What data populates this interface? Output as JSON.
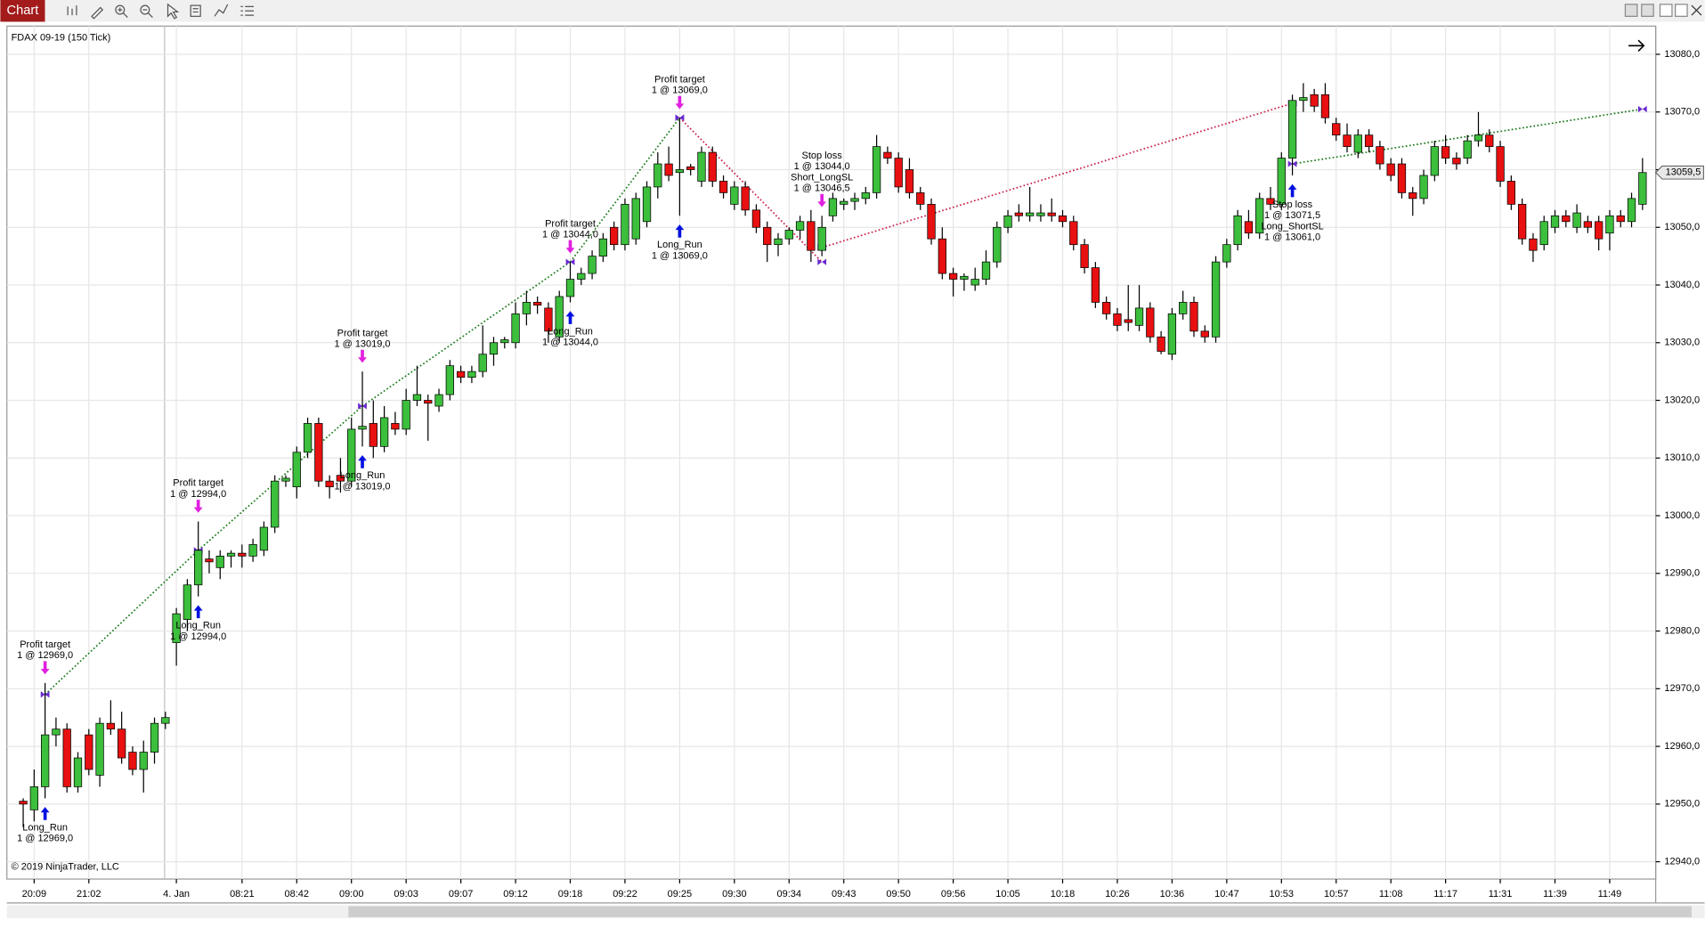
{
  "toolbar": {
    "tab": "Chart"
  },
  "chart_data": {
    "type": "candlestick",
    "title": "FDAX 09-19 (150 Tick)",
    "footer": "© 2019 NinjaTrader, LLC",
    "categories": [
      null,
      "20:09",
      null,
      null,
      null,
      null,
      "21:02",
      null,
      null,
      null,
      null,
      null,
      null,
      null,
      "4. Jan",
      null,
      null,
      null,
      null,
      null,
      "08:21",
      null,
      null,
      null,
      null,
      "08:42",
      null,
      null,
      null,
      null,
      "09:00",
      null,
      null,
      null,
      null,
      "09:03",
      null,
      null,
      null,
      null,
      "09:07",
      null,
      null,
      null,
      null,
      "09:12",
      null,
      null,
      null,
      null,
      "09:18",
      null,
      null,
      null,
      null,
      "09:22",
      null,
      null,
      null,
      null,
      "09:25",
      null,
      null,
      null,
      null,
      "09:30",
      null,
      null,
      null,
      null,
      "09:34",
      null,
      null,
      null,
      null,
      "09:43",
      null,
      null,
      null,
      null,
      "09:50",
      null,
      null,
      null,
      null,
      "09:56",
      null,
      null,
      null,
      null,
      "10:05",
      null,
      null,
      null,
      null,
      "10:18",
      null,
      null,
      null,
      null,
      "10:26",
      null,
      null,
      null,
      null,
      "10:36",
      null,
      null,
      null,
      null,
      "10:47",
      null,
      null,
      null,
      null,
      "10:53",
      null,
      null,
      null,
      null,
      "10:57",
      null,
      null,
      null,
      null,
      "11:08",
      null,
      null,
      null,
      null,
      "11:17",
      null,
      null,
      null,
      null,
      "11:31",
      null,
      null,
      null,
      null,
      "11:39",
      null,
      null,
      null,
      null,
      "11:49",
      null,
      null,
      null
    ],
    "open": [
      12950.5,
      12949,
      12953,
      12962,
      12963,
      12953,
      12962,
      12955,
      12964,
      12963,
      12959,
      12956,
      12959,
      12964,
      12978,
      12982,
      12988,
      12992.5,
      12991,
      12993,
      12993.5,
      12993,
      12994,
      12998,
      13006,
      13005,
      13011,
      13016,
      13006,
      13007,
      13006,
      13015,
      13016,
      13012,
      13016,
      13015,
      13020,
      13020,
      13019,
      13021,
      13025,
      13024,
      13025,
      13028,
      13030,
      13030,
      13035,
      13037,
      13036,
      13031,
      13038,
      13041,
      13042,
      13045,
      13050,
      13047,
      13048,
      13051,
      13057,
      13061,
      13059.5,
      13060.5,
      13058,
      13063,
      13058,
      13054,
      13057,
      13053,
      13050,
      13047,
      13048,
      13049.5,
      13051,
      13046,
      13052,
      13054,
      13054.5,
      13055,
      13056,
      13063,
      13062,
      13060,
      13056,
      13054,
      13048,
      13042,
      13041,
      13040,
      13041,
      13044,
      13050,
      13052.5,
      13052,
      13052,
      13052.5,
      13052,
      13051,
      13047,
      13043,
      13037,
      13035,
      13034,
      13033,
      13036,
      13031,
      13028,
      13035,
      13037,
      13032,
      13031,
      13044,
      13047,
      13051,
      13049,
      13055,
      13054,
      13062,
      13072,
      13073,
      13073,
      13068,
      13066,
      13063,
      13066,
      13064,
      13061,
      13061,
      13056,
      13055,
      13059,
      13064,
      13062,
      13062,
      13065,
      13066,
      13064,
      13058,
      13054,
      13048,
      13047,
      13050,
      13052,
      13050,
      13051,
      13051,
      13049,
      13052,
      13051,
      13054
    ],
    "high": [
      12951,
      12956,
      12971,
      12965,
      12964,
      12959,
      12963,
      12965,
      12968,
      12966,
      12960,
      12961,
      12965,
      12966,
      12984,
      12989,
      12999,
      12994,
      12994,
      12994,
      12995,
      12996,
      12999,
      13007,
      13007,
      13012,
      13017,
      13017,
      13007,
      13010,
      13017,
      13025,
      13020,
      13019,
      13018,
      13022,
      13026,
      13021,
      13022,
      13027,
      13026,
      13026,
      13033,
      13031,
      13031,
      13037,
      13039,
      13038,
      13037,
      13039,
      13044,
      13043,
      13046,
      13049,
      13051,
      13055,
      13056,
      13058,
      13063,
      13064,
      13069,
      13061,
      13064,
      13064,
      13059,
      13058,
      13058,
      13054,
      13051,
      13049,
      13050,
      13052,
      13053,
      13052,
      13056,
      13055,
      13056,
      13057,
      13066,
      13064,
      13063,
      13062,
      13057,
      13055,
      13050,
      13043,
      13042,
      13043,
      13046,
      13051,
      13053,
      13054,
      13057,
      13054,
      13055,
      13053,
      13052,
      13048,
      13044,
      13038,
      13036,
      13040,
      13040,
      13037,
      13032,
      13036,
      13039,
      13038,
      13033,
      13045,
      13048,
      13053,
      13053,
      13056,
      13057,
      13063,
      13073,
      13075,
      13074,
      13075,
      13069,
      13068,
      13067,
      13067,
      13065,
      13062,
      13062,
      13057,
      13060,
      13065,
      13066,
      13063,
      13066,
      13070,
      13067,
      13065,
      13059,
      13055,
      13049,
      13052,
      13053,
      13053,
      13054,
      13052,
      13052,
      13053,
      13053,
      13056,
      13062
    ],
    "low": [
      12946,
      12947,
      12951,
      12960,
      12952,
      12952,
      12955,
      12953,
      12962,
      12957,
      12955,
      12952,
      12957,
      12963,
      12974,
      12980,
      12986,
      12990,
      12989,
      12991,
      12991,
      12992,
      12993,
      12997,
      13005,
      13003,
      13010,
      13005,
      13003,
      13004,
      13005,
      13012,
      13010,
      13011,
      13014,
      13014,
      13019,
      13013,
      13018,
      13020,
      13023,
      13023,
      13024,
      13026,
      13029,
      13029,
      13033,
      13035,
      13030,
      13030,
      13037,
      13040,
      13041,
      13044,
      13046,
      13046,
      13047,
      13050,
      13055,
      13058,
      13052,
      13059,
      13057,
      13057,
      13055,
      13053,
      13052,
      13049,
      13044,
      13045,
      13047,
      13048,
      13044,
      13045,
      13051,
      13053,
      13053,
      13054,
      13055,
      13061,
      13056,
      13055,
      13053,
      13047,
      13041,
      13038,
      13039,
      13039,
      13040,
      13043,
      13049,
      13051,
      13051,
      13051,
      13051,
      13050,
      13046,
      13042,
      13036,
      13034,
      13032,
      13032,
      13032,
      13030,
      13028,
      13027,
      13034,
      13031,
      13030,
      13030,
      13043,
      13046,
      13048,
      13048,
      13053,
      13053,
      13059,
      13070,
      13070,
      13068,
      13065,
      13063,
      13062,
      13063,
      13060,
      13058,
      13055,
      13052,
      13054,
      13058,
      13061,
      13060,
      13061,
      13064,
      13063,
      13057,
      13053,
      13047,
      13044,
      13046,
      13049,
      13050,
      13049,
      13049,
      13046,
      13046,
      13050,
      13050,
      13053
    ],
    "close": [
      12950,
      12953,
      12962,
      12963,
      12953,
      12958,
      12956,
      12964,
      12963,
      12958,
      12956,
      12959,
      12964,
      12965,
      12983,
      12988,
      12994,
      12992,
      12993,
      12993.5,
      12993,
      12995,
      12998,
      13006,
      13006.5,
      13011,
      13016,
      13006,
      13005,
      13006,
      13015,
      13015.5,
      13012,
      13017,
      13015,
      13020,
      13021,
      13019.5,
      13021,
      13026,
      13024,
      13025,
      13028,
      13030,
      13030.5,
      13035,
      13037,
      13036.5,
      13032,
      13038,
      13041,
      13042,
      13045,
      13048,
      13047,
      13054,
      13055,
      13057,
      13061,
      13059,
      13060,
      13060,
      13063,
      13058,
      13056,
      13057,
      13053,
      13050,
      13047,
      13048,
      13049.5,
      13051,
      13046,
      13050,
      13055,
      13054.5,
      13055,
      13056,
      13064,
      13062,
      13057,
      13056,
      13054,
      13048,
      13042,
      13041,
      13041.5,
      13041,
      13044,
      13050,
      13052,
      13052,
      13052.5,
      13052.5,
      13052,
      13051,
      13047,
      13043,
      13037,
      13035,
      13033,
      13033.5,
      13036,
      13031,
      13028.5,
      13035,
      13037,
      13032,
      13031,
      13044,
      13047,
      13052,
      13049,
      13055,
      13054,
      13062,
      13072,
      13072.5,
      13071,
      13069,
      13066,
      13064,
      13066,
      13064,
      13061,
      13059,
      13056,
      13055,
      13059,
      13064,
      13062,
      13061,
      13065,
      13066,
      13064,
      13058,
      13054,
      13048,
      13046,
      13051,
      13052,
      13051,
      13052.5,
      13050,
      13048,
      13052,
      13051,
      13055,
      13059.5
    ],
    "up_color": "#3cbf3c",
    "down_color": "#e81010",
    "ylim": [
      12937,
      13084.7
    ],
    "yticks": [
      {
        "value": 12940,
        "label": "12940,0"
      },
      {
        "value": 12950,
        "label": "12950,0"
      },
      {
        "value": 12960,
        "label": "12960,0"
      },
      {
        "value": 12970,
        "label": "12970,0"
      },
      {
        "value": 12980,
        "label": "12980,0"
      },
      {
        "value": 12990,
        "label": "12990,0"
      },
      {
        "value": 13000,
        "label": "13000,0"
      },
      {
        "value": 13010,
        "label": "13010,0"
      },
      {
        "value": 13020,
        "label": "13020,0"
      },
      {
        "value": 13030,
        "label": "13030,0"
      },
      {
        "value": 13040,
        "label": "13040,0"
      },
      {
        "value": 13050,
        "label": "13050,0"
      },
      {
        "value": 13060,
        "label": "13060,0"
      },
      {
        "value": 13070,
        "label": "13070,0"
      },
      {
        "value": 13080,
        "label": "13080,0"
      }
    ],
    "grid": true,
    "last_price": {
      "value": 13059.5,
      "label": "13059,5"
    },
    "trades": [
      {
        "color": "#1a7a1a",
        "points": [
          [
            2,
            12969
          ],
          [
            16,
            12994
          ],
          [
            31,
            13019
          ],
          [
            50,
            13044
          ],
          [
            60,
            13069
          ]
        ]
      },
      {
        "color": "#c8204a",
        "points": [
          [
            60,
            13069
          ],
          [
            73,
            13044
          ]
        ]
      },
      {
        "color": "#c8204a",
        "points": [
          [
            73,
            13046.5
          ],
          [
            116,
            13071.5
          ]
        ]
      },
      {
        "color": "#1a7a1a",
        "points": [
          [
            116,
            13061
          ],
          [
            148,
            13070.5
          ]
        ]
      }
    ],
    "signals": [
      {
        "bar": 2,
        "place": "above",
        "color": "#e020e0",
        "lines": [
          "Profit target",
          "1 @ 12969,0"
        ]
      },
      {
        "bar": 2,
        "place": "below",
        "color": "#0010e0",
        "lines": [
          "Long_Run",
          "1 @ 12969,0"
        ]
      },
      {
        "bar": 16,
        "place": "above",
        "color": "#e020e0",
        "lines": [
          "Profit target",
          "1 @ 12994,0"
        ]
      },
      {
        "bar": 16,
        "place": "below",
        "color": "#0010e0",
        "lines": [
          "Long_Run",
          "1 @ 12994,0"
        ]
      },
      {
        "bar": 31,
        "place": "above",
        "color": "#e020e0",
        "lines": [
          "Profit target",
          "1 @ 13019,0"
        ]
      },
      {
        "bar": 31,
        "place": "below",
        "color": "#0010e0",
        "lines": [
          "Long_Run",
          "1 @ 13019,0"
        ]
      },
      {
        "bar": 50,
        "place": "above",
        "color": "#e020e0",
        "lines": [
          "Profit target",
          "1 @ 13044,0"
        ]
      },
      {
        "bar": 50,
        "place": "below",
        "color": "#0010e0",
        "lines": [
          "Long_Run",
          "1 @ 13044,0"
        ]
      },
      {
        "bar": 60,
        "place": "above",
        "color": "#e020e0",
        "lines": [
          "Profit target",
          "1 @ 13069,0"
        ]
      },
      {
        "bar": 60,
        "place": "below",
        "color": "#0010e0",
        "lines": [
          "Long_Run",
          "1 @ 13069,0"
        ]
      },
      {
        "bar": 73,
        "place": "above",
        "color": "#e020e0",
        "lines": [
          "Stop loss",
          "1 @ 13044,0",
          "Short_LongSL",
          "1 @ 13046,5"
        ]
      },
      {
        "bar": 116,
        "place": "below",
        "color": "#0010e0",
        "lines": [
          "Stop loss",
          "1 @ 13071,5",
          "Long_ShortSL",
          "1 @ 13061,0"
        ]
      }
    ]
  }
}
